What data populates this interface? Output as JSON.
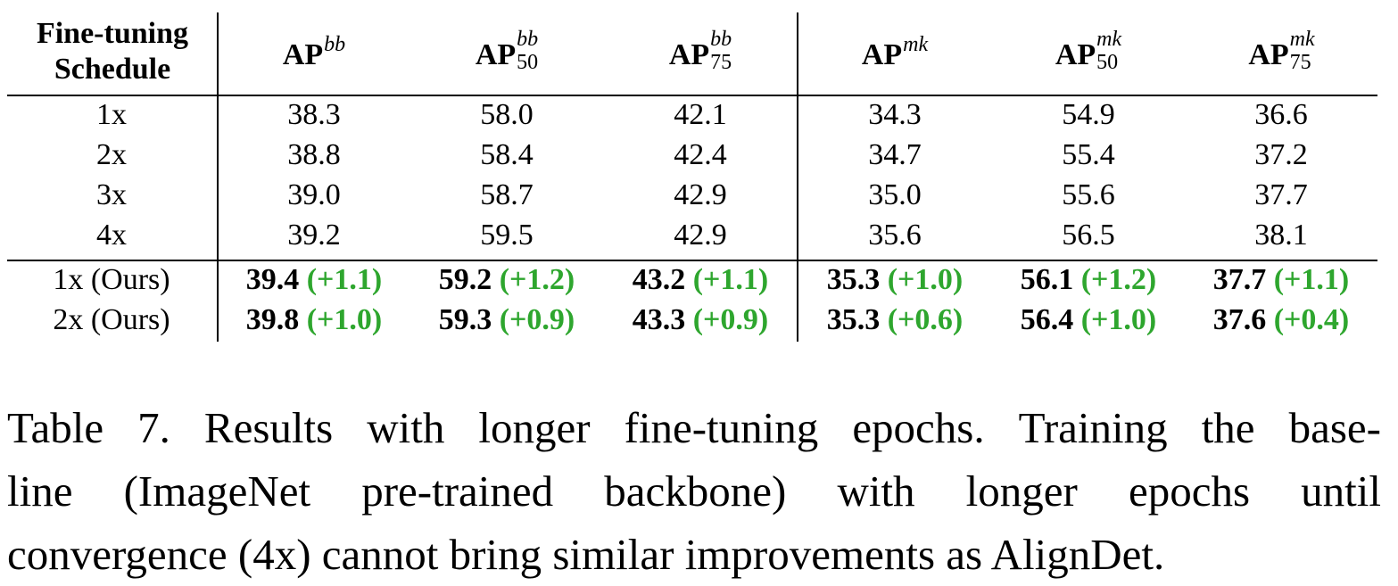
{
  "table": {
    "header": {
      "schedule_line1": "Fine-tuning",
      "schedule_line2": "Schedule",
      "columns": [
        {
          "main": "AP",
          "sup": "bb",
          "sub": ""
        },
        {
          "main": "AP",
          "sup": "bb",
          "sub": "50"
        },
        {
          "main": "AP",
          "sup": "bb",
          "sub": "75"
        },
        {
          "main": "AP",
          "sup": "mk",
          "sub": ""
        },
        {
          "main": "AP",
          "sup": "mk",
          "sub": "50"
        },
        {
          "main": "AP",
          "sup": "mk",
          "sub": "75"
        }
      ]
    },
    "baseline_rows": [
      {
        "schedule": "1x",
        "values": [
          "38.3",
          "58.0",
          "42.1",
          "34.3",
          "54.9",
          "36.6"
        ]
      },
      {
        "schedule": "2x",
        "values": [
          "38.8",
          "58.4",
          "42.4",
          "34.7",
          "55.4",
          "37.2"
        ]
      },
      {
        "schedule": "3x",
        "values": [
          "39.0",
          "58.7",
          "42.9",
          "35.0",
          "55.6",
          "37.7"
        ]
      },
      {
        "schedule": "4x",
        "values": [
          "39.2",
          "59.5",
          "42.9",
          "35.6",
          "56.5",
          "38.1"
        ]
      }
    ],
    "ours_rows": [
      {
        "schedule": "1x (Ours)",
        "values": [
          "39.4",
          "59.2",
          "43.2",
          "35.3",
          "56.1",
          "37.7"
        ],
        "gains": [
          "(+1.1)",
          "(+1.2)",
          "(+1.1)",
          "(+1.0)",
          "(+1.2)",
          "(+1.1)"
        ]
      },
      {
        "schedule": "2x (Ours)",
        "values": [
          "39.8",
          "59.3",
          "43.3",
          "35.3",
          "56.4",
          "37.6"
        ],
        "gains": [
          "(+1.0)",
          "(+0.9)",
          "(+0.9)",
          "(+0.6)",
          "(+1.0)",
          "(+0.4)"
        ]
      }
    ],
    "gain_color": "#2ea62e"
  },
  "caption": {
    "lines": [
      "Table 7. Results with longer fine-tuning epochs. Training the base-",
      "line (ImageNet pre-trained backbone) with longer epochs until",
      "convergence (4x) cannot bring similar improvements as AlignDet."
    ]
  }
}
